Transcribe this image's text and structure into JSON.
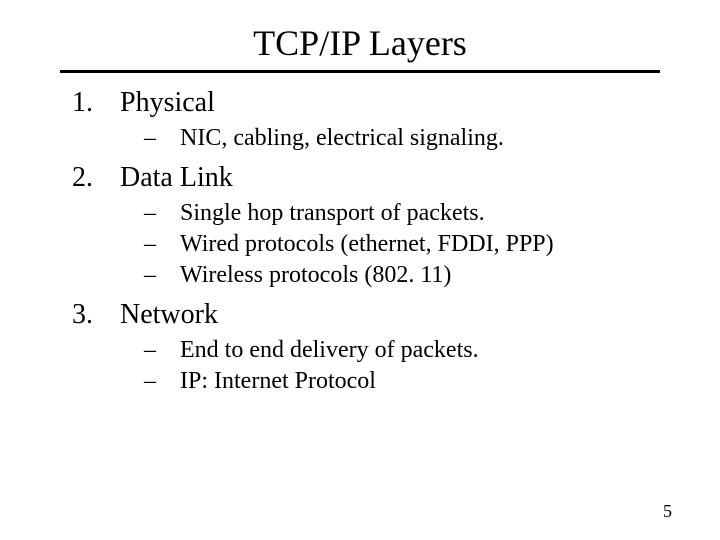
{
  "title": "TCP/IP Layers",
  "items": [
    {
      "num": "1.",
      "label": "Physical",
      "sub": [
        "NIC, cabling, electrical signaling."
      ]
    },
    {
      "num": "2.",
      "label": "Data Link",
      "sub": [
        "Single hop transport of packets.",
        "Wired protocols (ethernet, FDDI, PPP)",
        "Wireless protocols (802. 11)"
      ]
    },
    {
      "num": "3.",
      "label": "Network",
      "sub": [
        "End to end delivery of packets.",
        "IP: Internet Protocol"
      ]
    }
  ],
  "page_number": "5",
  "dash": "–"
}
